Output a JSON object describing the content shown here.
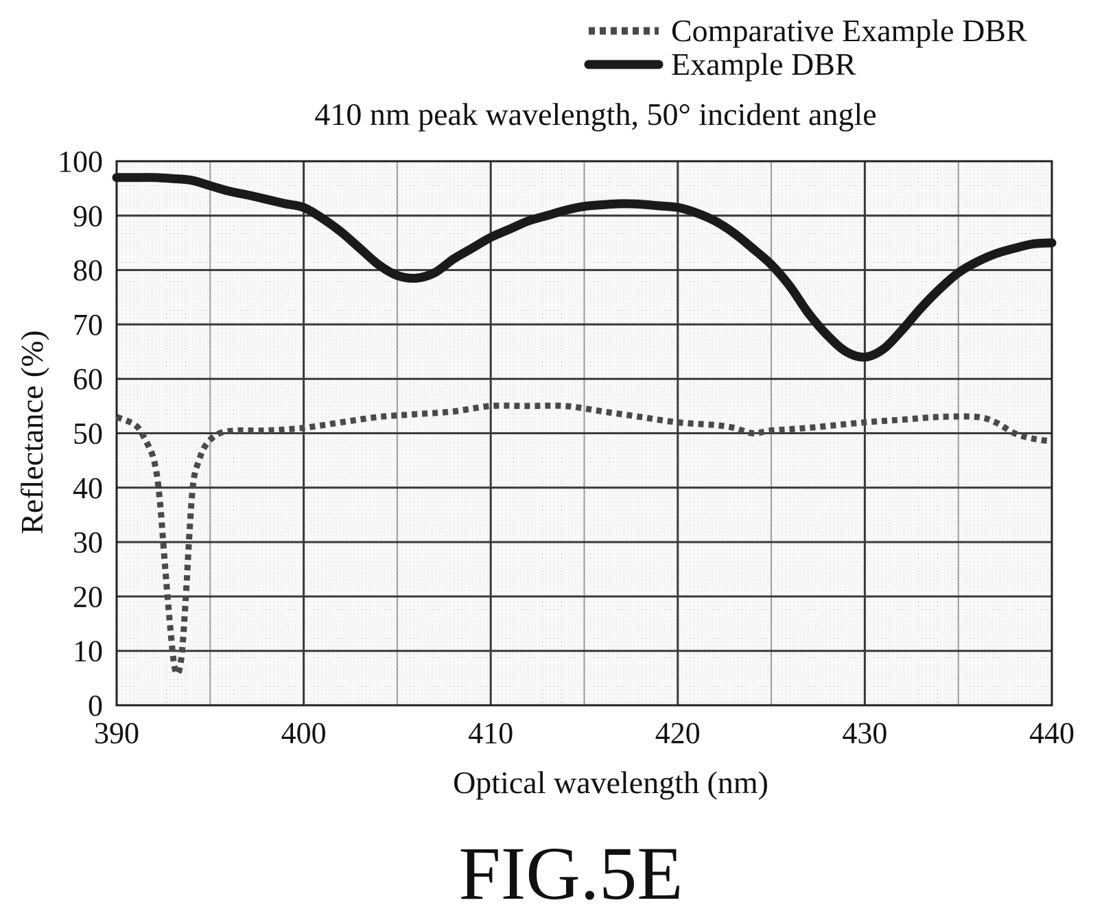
{
  "figure_label": "FIG.5E",
  "chart_data": {
    "type": "line",
    "title": "410 nm peak wavelength, 50° incident angle",
    "xlabel": "Optical wavelength (nm)",
    "ylabel": "Reflectance (%)",
    "xlim": [
      390,
      440
    ],
    "ylim": [
      0,
      100
    ],
    "xticks": [
      390,
      400,
      410,
      420,
      430,
      440
    ],
    "yticks": [
      0,
      10,
      20,
      30,
      40,
      50,
      60,
      70,
      80,
      90,
      100
    ],
    "x_tick_labels": [
      "390",
      "400",
      "410",
      "420",
      "430",
      "440"
    ],
    "y_tick_labels": [
      "0",
      "10",
      "20",
      "30",
      "40",
      "50",
      "60",
      "70",
      "80",
      "90",
      "100"
    ],
    "grid": true,
    "x_minor_grid_step": 5,
    "legend_position": "top-right",
    "series": [
      {
        "name": "Comparative Example DBR",
        "style": "dotted",
        "color": "#4a4a4a",
        "x": [
          390,
          391,
          391.5,
          392,
          392.3,
          392.6,
          392.9,
          393.1,
          393.3,
          393.5,
          393.7,
          393.9,
          394.1,
          394.4,
          394.8,
          395.5,
          396.5,
          398,
          400,
          402,
          404,
          406,
          408,
          410,
          412,
          414,
          416,
          418,
          420,
          422,
          423,
          424,
          425,
          427,
          430,
          432,
          434,
          436,
          437,
          438,
          439,
          440
        ],
        "y": [
          53,
          51.5,
          49,
          45,
          38,
          25,
          13,
          7,
          6,
          10,
          20,
          32,
          41,
          45,
          48,
          50,
          50.5,
          50.5,
          51,
          52,
          53,
          53.5,
          54,
          55,
          55,
          55,
          54,
          53,
          52,
          51.5,
          51,
          50,
          50.5,
          51,
          52,
          52.5,
          53,
          53,
          52,
          50,
          49,
          48.5
        ]
      },
      {
        "name": "Example DBR",
        "style": "solid",
        "color": "#1a1a1a",
        "x": [
          390,
          391,
          392,
          393,
          394,
          395,
          396,
          397,
          398,
          399,
          400,
          401,
          402,
          403,
          404,
          405,
          406,
          407,
          408,
          409,
          410,
          411,
          412,
          413,
          414,
          415,
          416,
          417,
          418,
          419,
          420,
          421,
          422,
          423,
          424,
          425,
          426,
          427,
          428,
          429,
          430,
          431,
          432,
          433,
          434,
          435,
          436,
          437,
          438,
          439,
          440
        ],
        "y": [
          97,
          97,
          97,
          96.8,
          96.5,
          95.5,
          94.5,
          93.8,
          93,
          92.2,
          91.5,
          89.5,
          87,
          84,
          81,
          79,
          78.5,
          79.5,
          82,
          84,
          86,
          87.5,
          89,
          90,
          91,
          91.7,
          92,
          92.2,
          92.1,
          91.8,
          91.5,
          90.5,
          89,
          86.8,
          84,
          81,
          77,
          72,
          68,
          65,
          64,
          65.5,
          69,
          73,
          76.5,
          79.5,
          81.5,
          83,
          84,
          84.8,
          85
        ]
      }
    ]
  }
}
